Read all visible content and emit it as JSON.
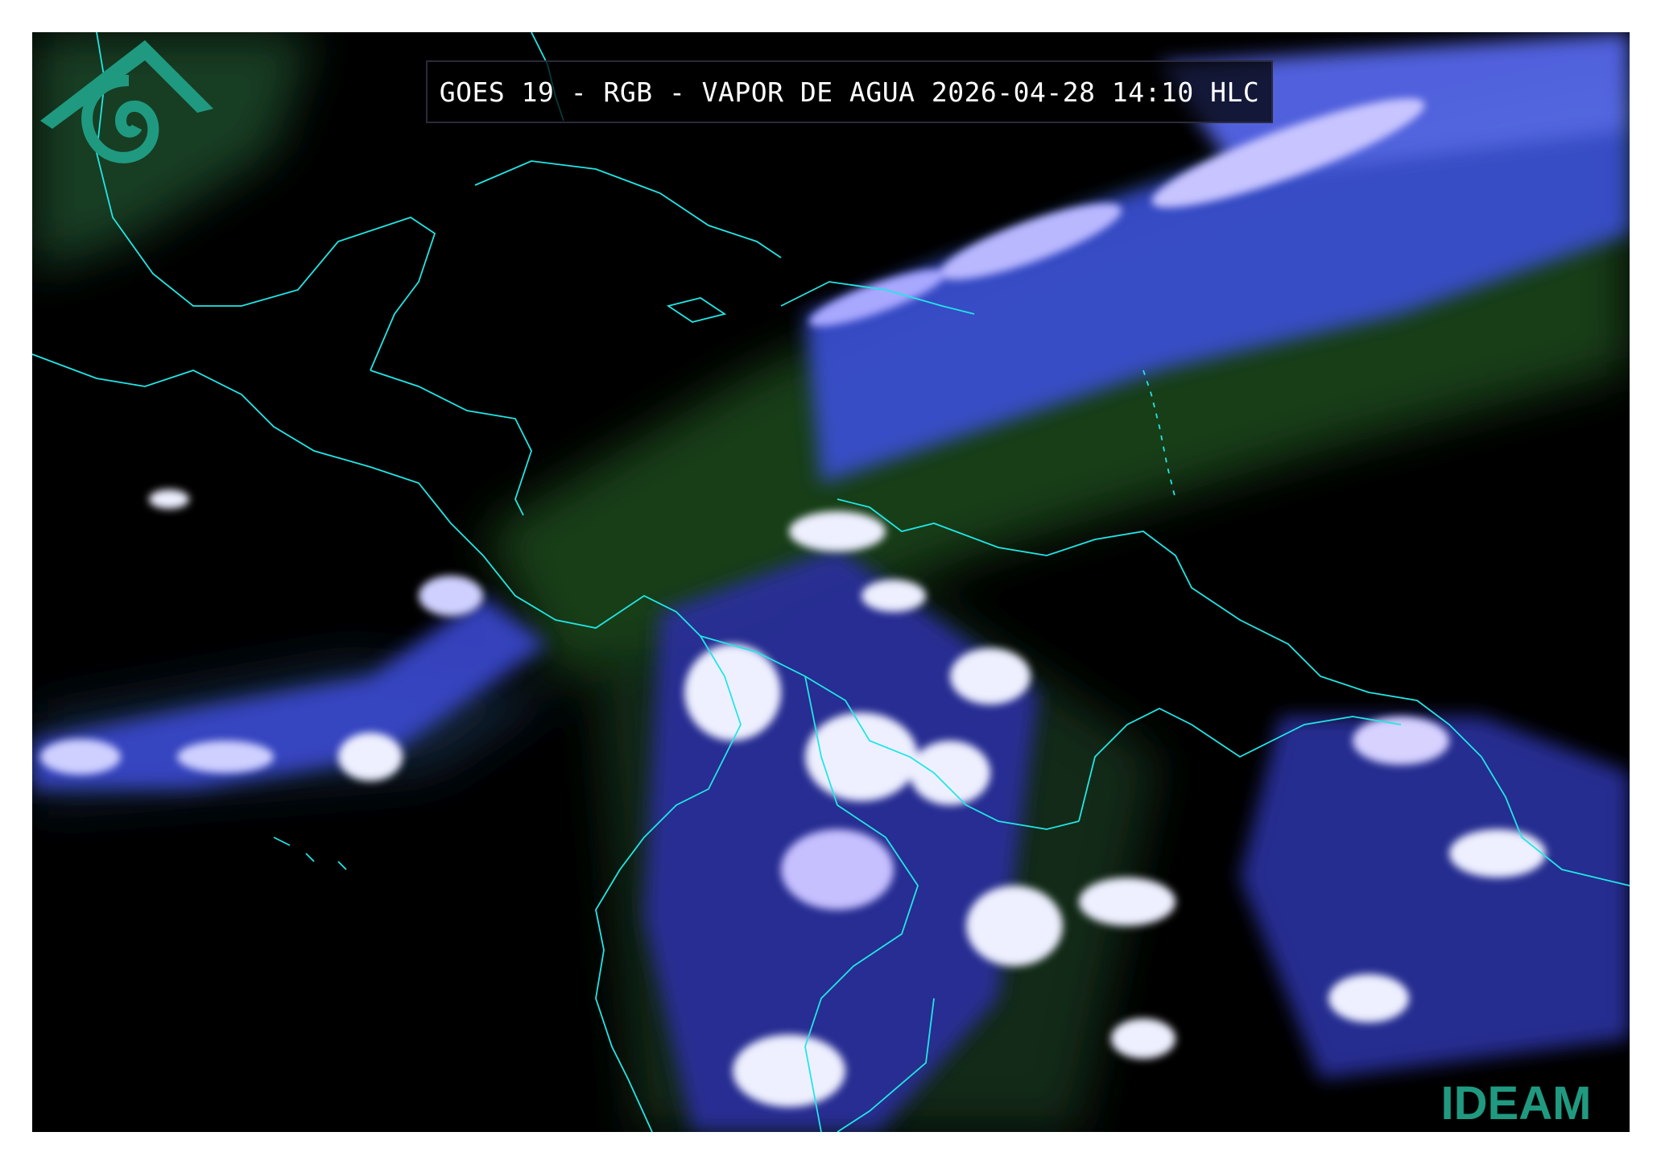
{
  "header": {
    "title": "GOES 19 - RGB - VAPOR DE AGUA 2026-04-28 14:10 HLC"
  },
  "logo": {
    "text": "IDEAM",
    "color": "#1f9a80"
  },
  "colors": {
    "background": "#000000",
    "coastline": "#22e6e6",
    "moisture_green": "#1e4a1e",
    "cloud_blue": "#4a5cff",
    "cloud_white": "#f2f2ff"
  }
}
